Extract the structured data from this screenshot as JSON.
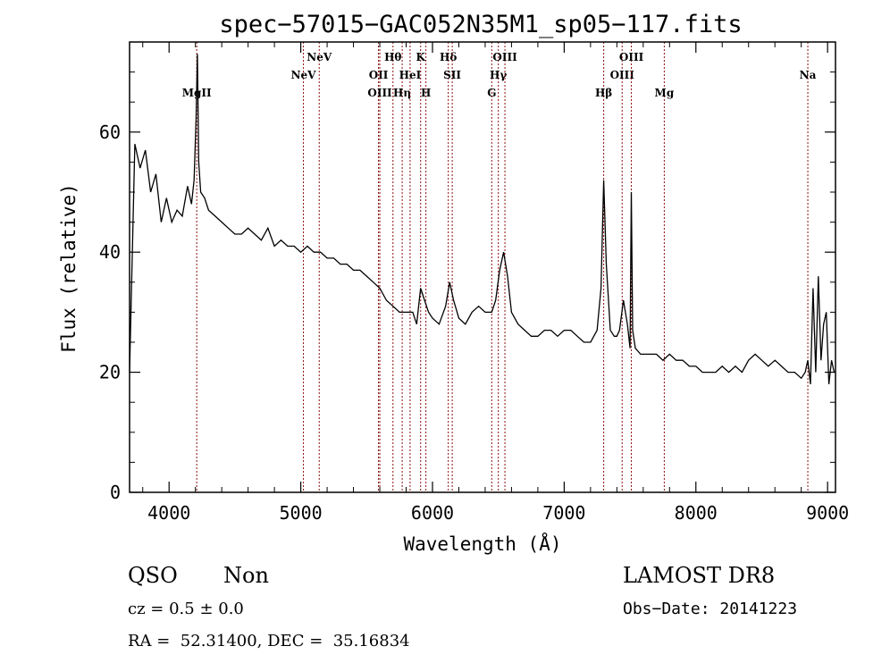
{
  "chart_data": {
    "type": "line",
    "title": "spec−57015−GAC052N35M1_sp05−117.fits",
    "xlabel": "Wavelength (Å)",
    "ylabel": "Flux (relative)",
    "xlim": [
      3700,
      9060
    ],
    "ylim": [
      0,
      75
    ],
    "xticks": [
      4000,
      5000,
      6000,
      7000,
      8000,
      9000
    ],
    "yticks": [
      0,
      20,
      40,
      60
    ],
    "x": [
      3700,
      3740,
      3780,
      3820,
      3860,
      3900,
      3940,
      3980,
      4020,
      4060,
      4100,
      4140,
      4170,
      4190,
      4205,
      4215,
      4225,
      4240,
      4270,
      4300,
      4350,
      4400,
      4450,
      4500,
      4550,
      4600,
      4650,
      4700,
      4750,
      4800,
      4850,
      4900,
      4950,
      5000,
      5050,
      5100,
      5150,
      5200,
      5250,
      5300,
      5350,
      5400,
      5450,
      5500,
      5550,
      5600,
      5650,
      5700,
      5750,
      5800,
      5850,
      5880,
      5910,
      5940,
      5970,
      6000,
      6050,
      6100,
      6130,
      6160,
      6200,
      6250,
      6300,
      6350,
      6400,
      6450,
      6480,
      6510,
      6540,
      6570,
      6600,
      6650,
      6700,
      6750,
      6800,
      6850,
      6900,
      6950,
      7000,
      7050,
      7100,
      7150,
      7200,
      7250,
      7280,
      7300,
      7320,
      7350,
      7380,
      7400,
      7420,
      7450,
      7480,
      7500,
      7510,
      7520,
      7540,
      7580,
      7650,
      7700,
      7750,
      7800,
      7850,
      7900,
      7950,
      8000,
      8050,
      8100,
      8150,
      8200,
      8250,
      8300,
      8350,
      8400,
      8450,
      8500,
      8550,
      8600,
      8650,
      8700,
      8750,
      8800,
      8830,
      8850,
      8870,
      8890,
      8910,
      8930,
      8950,
      8970,
      8990,
      9010,
      9030,
      9050
    ],
    "y": [
      20,
      58,
      54,
      57,
      50,
      53,
      45,
      49,
      45,
      47,
      46,
      51,
      48,
      52,
      62,
      73,
      55,
      50,
      49,
      47,
      46,
      45,
      44,
      43,
      43,
      44,
      43,
      42,
      44,
      41,
      42,
      41,
      41,
      40,
      41,
      40,
      40,
      39,
      39,
      38,
      38,
      37,
      37,
      36,
      35,
      34,
      32,
      31,
      30,
      30,
      30,
      28,
      34,
      32,
      30,
      29,
      28,
      31,
      35,
      32,
      29,
      28,
      30,
      31,
      30,
      30,
      32,
      37,
      40,
      36,
      30,
      28,
      27,
      26,
      26,
      27,
      27,
      26,
      27,
      27,
      26,
      25,
      25,
      27,
      34,
      52,
      38,
      27,
      26,
      26,
      27,
      32,
      28,
      24,
      50,
      27,
      24,
      23,
      23,
      23,
      22,
      23,
      22,
      22,
      21,
      21,
      20,
      20,
      20,
      21,
      20,
      21,
      20,
      22,
      23,
      22,
      21,
      22,
      21,
      20,
      20,
      19,
      20,
      22,
      18,
      34,
      20,
      36,
      22,
      28,
      30,
      18,
      22,
      20
    ],
    "lines": [
      {
        "name": "MgII",
        "x": 4210,
        "row": 3
      },
      {
        "name": "NeV",
        "x": 5020,
        "row": 2
      },
      {
        "name": "NeV",
        "x": 5140,
        "row": 1
      },
      {
        "name": "OII",
        "x": 5590,
        "row": 2
      },
      {
        "name": "OIII",
        "x": 5600,
        "row": 3
      },
      {
        "name": "Hθ",
        "x": 5700,
        "row": 1
      },
      {
        "name": "Hη",
        "x": 5770,
        "row": 3
      },
      {
        "name": "HeI",
        "x": 5830,
        "row": 2
      },
      {
        "name": "K",
        "x": 5910,
        "row": 1
      },
      {
        "name": "H",
        "x": 5950,
        "row": 3
      },
      {
        "name": "Hδ",
        "x": 6120,
        "row": 1
      },
      {
        "name": "SII",
        "x": 6150,
        "row": 2
      },
      {
        "name": "G",
        "x": 6450,
        "row": 3
      },
      {
        "name": "Hγ",
        "x": 6500,
        "row": 2
      },
      {
        "name": "OIII",
        "x": 6550,
        "row": 1
      },
      {
        "name": "Hβ",
        "x": 7300,
        "row": 3
      },
      {
        "name": "OIII",
        "x": 7440,
        "row": 2
      },
      {
        "name": "OIII",
        "x": 7510,
        "row": 1
      },
      {
        "name": "Mg",
        "x": 7760,
        "row": 3
      },
      {
        "name": "Na",
        "x": 8850,
        "row": 2
      }
    ],
    "line_color": "#8b1010",
    "grid": false
  },
  "footer": {
    "class": "QSO",
    "subclass": "Non",
    "survey": "LAMOST DR8",
    "cz": "cz = 0.5 ± 0.0",
    "obs_date": "Obs−Date: 20141223",
    "coords": "RA =  52.31400, DEC =  35.16834"
  }
}
